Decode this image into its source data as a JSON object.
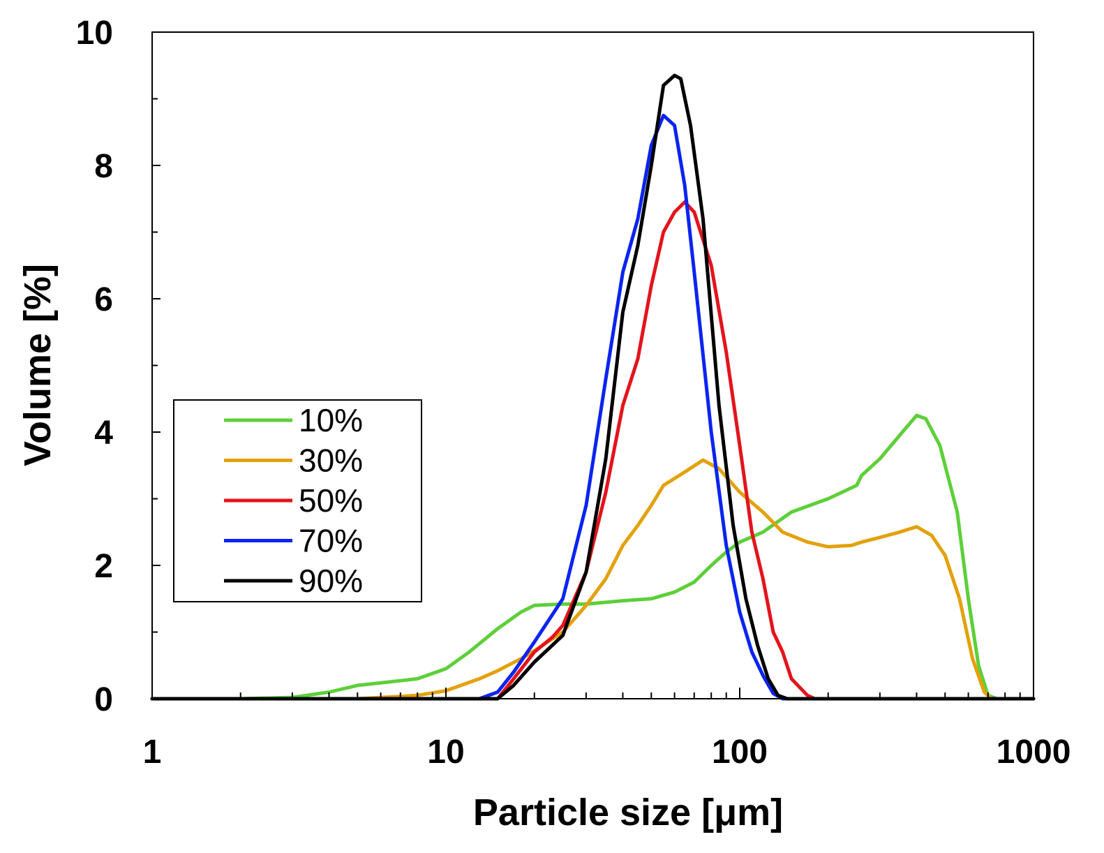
{
  "chart_data": {
    "type": "line",
    "title": "",
    "xlabel": "Particle size [μm]",
    "ylabel": "Volume [%]",
    "xscale": "log",
    "xlim": [
      1,
      1000
    ],
    "ylim": [
      0,
      10
    ],
    "xticks": [
      1,
      10,
      100,
      1000
    ],
    "xtick_labels": [
      "1",
      "10",
      "100",
      "1000"
    ],
    "yticks": [
      0,
      2,
      4,
      6,
      8,
      10
    ],
    "ytick_labels": [
      "0",
      "2",
      "4",
      "6",
      "8",
      "10"
    ],
    "grid": false,
    "legend_position": "center-left",
    "series": [
      {
        "name": "10%",
        "color": "#5ecf3a",
        "points": [
          [
            1,
            0
          ],
          [
            2,
            0
          ],
          [
            3,
            0.02
          ],
          [
            4,
            0.1
          ],
          [
            5,
            0.2
          ],
          [
            7,
            0.27
          ],
          [
            8,
            0.3
          ],
          [
            10,
            0.45
          ],
          [
            12,
            0.7
          ],
          [
            15,
            1.05
          ],
          [
            18,
            1.3
          ],
          [
            20,
            1.4
          ],
          [
            25,
            1.42
          ],
          [
            30,
            1.42
          ],
          [
            40,
            1.47
          ],
          [
            50,
            1.5
          ],
          [
            60,
            1.6
          ],
          [
            70,
            1.75
          ],
          [
            80,
            2.0
          ],
          [
            90,
            2.2
          ],
          [
            100,
            2.35
          ],
          [
            120,
            2.5
          ],
          [
            150,
            2.8
          ],
          [
            200,
            3.0
          ],
          [
            250,
            3.2
          ],
          [
            260,
            3.35
          ],
          [
            300,
            3.6
          ],
          [
            350,
            3.95
          ],
          [
            400,
            4.25
          ],
          [
            430,
            4.2
          ],
          [
            480,
            3.8
          ],
          [
            550,
            2.8
          ],
          [
            600,
            1.5
          ],
          [
            650,
            0.5
          ],
          [
            700,
            0.05
          ],
          [
            750,
            0
          ],
          [
            1000,
            0
          ]
        ]
      },
      {
        "name": "30%",
        "color": "#e3a10d",
        "points": [
          [
            1,
            0
          ],
          [
            5,
            0
          ],
          [
            8,
            0.05
          ],
          [
            10,
            0.12
          ],
          [
            13,
            0.3
          ],
          [
            15,
            0.42
          ],
          [
            18,
            0.6
          ],
          [
            20,
            0.72
          ],
          [
            25,
            1.0
          ],
          [
            30,
            1.4
          ],
          [
            35,
            1.8
          ],
          [
            40,
            2.3
          ],
          [
            45,
            2.6
          ],
          [
            50,
            2.9
          ],
          [
            55,
            3.2
          ],
          [
            65,
            3.4
          ],
          [
            75,
            3.58
          ],
          [
            85,
            3.45
          ],
          [
            100,
            3.1
          ],
          [
            120,
            2.8
          ],
          [
            140,
            2.5
          ],
          [
            170,
            2.35
          ],
          [
            200,
            2.28
          ],
          [
            240,
            2.3
          ],
          [
            260,
            2.35
          ],
          [
            300,
            2.42
          ],
          [
            350,
            2.5
          ],
          [
            400,
            2.58
          ],
          [
            450,
            2.45
          ],
          [
            500,
            2.15
          ],
          [
            560,
            1.5
          ],
          [
            620,
            0.6
          ],
          [
            680,
            0.1
          ],
          [
            720,
            0
          ],
          [
            1000,
            0
          ]
        ]
      },
      {
        "name": "50%",
        "color": "#e3141c",
        "points": [
          [
            1,
            0
          ],
          [
            15,
            0
          ],
          [
            17,
            0.3
          ],
          [
            20,
            0.7
          ],
          [
            23,
            0.92
          ],
          [
            25,
            1.1
          ],
          [
            30,
            1.9
          ],
          [
            35,
            3.1
          ],
          [
            40,
            4.4
          ],
          [
            45,
            5.1
          ],
          [
            50,
            6.2
          ],
          [
            55,
            7.0
          ],
          [
            60,
            7.3
          ],
          [
            65,
            7.45
          ],
          [
            70,
            7.3
          ],
          [
            80,
            6.5
          ],
          [
            90,
            5.2
          ],
          [
            100,
            3.8
          ],
          [
            110,
            2.5
          ],
          [
            120,
            1.8
          ],
          [
            130,
            1.0
          ],
          [
            140,
            0.7
          ],
          [
            150,
            0.3
          ],
          [
            170,
            0.05
          ],
          [
            180,
            0
          ],
          [
            1000,
            0
          ]
        ]
      },
      {
        "name": "70%",
        "color": "#0a24f0",
        "points": [
          [
            1,
            0
          ],
          [
            13,
            0
          ],
          [
            15,
            0.1
          ],
          [
            17,
            0.4
          ],
          [
            20,
            0.85
          ],
          [
            25,
            1.5
          ],
          [
            30,
            2.9
          ],
          [
            35,
            4.8
          ],
          [
            40,
            6.4
          ],
          [
            45,
            7.2
          ],
          [
            50,
            8.3
          ],
          [
            55,
            8.75
          ],
          [
            60,
            8.6
          ],
          [
            65,
            7.7
          ],
          [
            70,
            6.4
          ],
          [
            80,
            4.0
          ],
          [
            90,
            2.3
          ],
          [
            100,
            1.3
          ],
          [
            110,
            0.7
          ],
          [
            120,
            0.35
          ],
          [
            130,
            0.08
          ],
          [
            140,
            0
          ],
          [
            1000,
            0
          ]
        ]
      },
      {
        "name": "90%",
        "color": "#000000",
        "points": [
          [
            1,
            0
          ],
          [
            15,
            0
          ],
          [
            17,
            0.2
          ],
          [
            20,
            0.55
          ],
          [
            25,
            0.95
          ],
          [
            30,
            1.9
          ],
          [
            35,
            3.6
          ],
          [
            40,
            5.8
          ],
          [
            45,
            6.8
          ],
          [
            50,
            8.0
          ],
          [
            55,
            9.2
          ],
          [
            60,
            9.35
          ],
          [
            63,
            9.3
          ],
          [
            68,
            8.6
          ],
          [
            75,
            7.2
          ],
          [
            85,
            4.4
          ],
          [
            95,
            2.6
          ],
          [
            105,
            1.5
          ],
          [
            115,
            0.8
          ],
          [
            125,
            0.3
          ],
          [
            135,
            0.05
          ],
          [
            145,
            0
          ],
          [
            1000,
            0
          ]
        ]
      }
    ]
  }
}
